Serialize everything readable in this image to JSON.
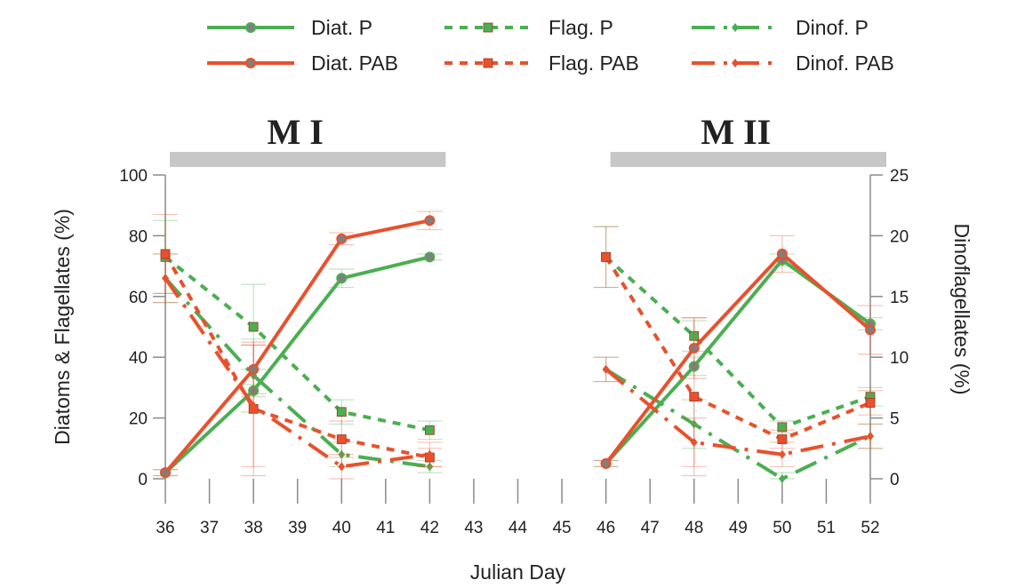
{
  "colors": {
    "green": "#4cae52",
    "red": "#e8512d",
    "axis": "#8a8a8a",
    "period_bar": "#c7c7c7"
  },
  "chart_data": {
    "type": "line",
    "xlabel": "Julian Day",
    "ylabel_left": "Diatoms & Flagellates (%)",
    "ylabel_right": "Dinoflagellates (%)",
    "x_ticks": [
      "36",
      "37",
      "38",
      "39",
      "40",
      "41",
      "42",
      "43",
      "44",
      "45",
      "46",
      "47",
      "48",
      "49",
      "50",
      "51",
      "52"
    ],
    "xlim": [
      36,
      52
    ],
    "ylim_left": [
      0,
      100
    ],
    "ylim_right": [
      0,
      25
    ],
    "left_ticks": [
      "0",
      "20",
      "40",
      "60",
      "80",
      "100"
    ],
    "right_ticks": [
      "0",
      "5",
      "10",
      "15",
      "20",
      "25"
    ],
    "grid": false,
    "legend_position": "top",
    "periods": [
      {
        "label": "M I",
        "start": 36,
        "end": 42
      },
      {
        "label": "M II",
        "start": 46,
        "end": 52
      }
    ],
    "series": [
      {
        "name": "Diat. P",
        "axis": "left",
        "color": "green",
        "dash": "solid",
        "marker": "circle",
        "segments": [
          {
            "x": [
              36,
              38,
              40,
              42
            ],
            "y": [
              2,
              29,
              66,
              73
            ],
            "err": [
              1,
              2,
              3,
              1
            ]
          },
          {
            "x": [
              46,
              48,
              50,
              52
            ],
            "y": [
              5,
              37,
              72,
              51
            ],
            "err": [
              1,
              3,
              2,
              2
            ]
          }
        ]
      },
      {
        "name": "Flag. P",
        "axis": "left",
        "color": "green",
        "dash": "dashed",
        "marker": "square",
        "segments": [
          {
            "x": [
              36,
              38,
              40,
              42
            ],
            "y": [
              73,
              50,
              22,
              16
            ],
            "err": [
              12,
              14,
              4,
              3
            ]
          },
          {
            "x": [
              46,
              48,
              50,
              52
            ],
            "y": [
              73,
              47,
              17,
              27
            ],
            "err": [
              10,
              5,
              2,
              3
            ]
          }
        ]
      },
      {
        "name": "Dinof. P",
        "axis": "right",
        "color": "green",
        "dash": "dashdot",
        "marker": "diamond",
        "segments": [
          {
            "x": [
              36,
              38,
              40,
              42
            ],
            "y": [
              16.5,
              8.5,
              2,
              1
            ],
            "err": [
              2,
              3,
              1,
              0.5
            ]
          },
          {
            "x": [
              46,
              48,
              50,
              52
            ],
            "y": [
              9,
              4.5,
              0,
              3.5
            ],
            "err": [
              1,
              2,
              0.5,
              1
            ]
          }
        ]
      },
      {
        "name": "Diat. PAB",
        "axis": "left",
        "color": "red",
        "dash": "solid",
        "marker": "circle",
        "segments": [
          {
            "x": [
              36,
              38,
              40,
              42
            ],
            "y": [
              2,
              36,
              79,
              85
            ],
            "err": [
              1,
              8,
              2,
              3
            ]
          },
          {
            "x": [
              46,
              48,
              50,
              52
            ],
            "y": [
              5,
              43,
              74,
              49
            ],
            "err": [
              1,
              10,
              6,
              8
            ]
          }
        ]
      },
      {
        "name": "Flag. PAB",
        "axis": "left",
        "color": "red",
        "dash": "dashed",
        "marker": "square",
        "segments": [
          {
            "x": [
              36,
              38,
              40,
              42
            ],
            "y": [
              74,
              23,
              13,
              7
            ],
            "err": [
              13,
              22,
              6,
              3
            ]
          },
          {
            "x": [
              46,
              48,
              50,
              52
            ],
            "y": [
              73,
              27,
              13,
              25
            ],
            "err": [
              10,
              26,
              3,
              4
            ]
          }
        ]
      },
      {
        "name": "Dinof. PAB",
        "axis": "right",
        "color": "red",
        "dash": "dashdot",
        "marker": "diamond",
        "segments": [
          {
            "x": [
              36,
              38,
              40,
              42
            ],
            "y": [
              16.5,
              6,
              1,
              2
            ],
            "err": [
              2,
              5,
              1,
              1
            ]
          },
          {
            "x": [
              46,
              48,
              50,
              52
            ],
            "y": [
              9,
              3,
              2,
              3.5
            ],
            "err": [
              1,
              2,
              1,
              1
            ]
          }
        ]
      }
    ]
  }
}
